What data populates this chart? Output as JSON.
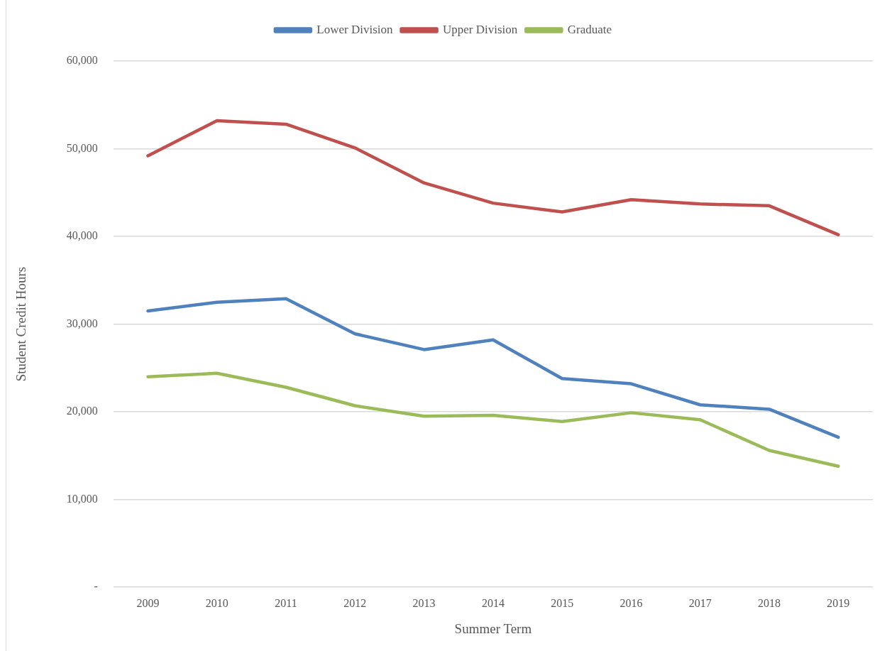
{
  "chart_data": {
    "type": "line",
    "xlabel": "Summer Term",
    "ylabel": "Student Credit Hours",
    "categories": [
      "2009",
      "2010",
      "2011",
      "2012",
      "2013",
      "2014",
      "2015",
      "2016",
      "2017",
      "2018",
      "2019"
    ],
    "series": [
      {
        "name": "Lower Division",
        "color": "#4f81bd",
        "values": [
          31500,
          32500,
          32900,
          28900,
          27100,
          28200,
          23800,
          23200,
          20800,
          20300,
          17100
        ]
      },
      {
        "name": "Upper Division",
        "color": "#c0504d",
        "values": [
          49200,
          53200,
          52800,
          50100,
          46100,
          43800,
          42800,
          44200,
          43700,
          43500,
          40200
        ]
      },
      {
        "name": "Graduate",
        "color": "#9bbb59",
        "values": [
          24000,
          24400,
          22800,
          20700,
          19500,
          19600,
          18900,
          19900,
          19100,
          15600,
          13800
        ]
      }
    ],
    "ylim": [
      0,
      60000
    ],
    "yticks": [
      {
        "value": 0,
        "label": "-"
      },
      {
        "value": 10000,
        "label": "10,000"
      },
      {
        "value": 20000,
        "label": "20,000"
      },
      {
        "value": 30000,
        "label": "30,000"
      },
      {
        "value": 40000,
        "label": "40,000"
      },
      {
        "value": 50000,
        "label": "50,000"
      },
      {
        "value": 60000,
        "label": "60,000"
      }
    ],
    "grid": "y",
    "legend": "top",
    "marker": "none"
  }
}
